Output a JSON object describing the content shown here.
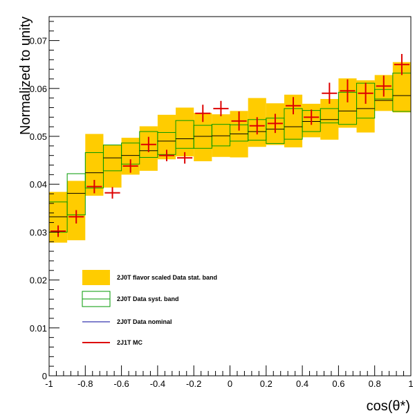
{
  "chart_data": {
    "type": "histogram",
    "xlabel": "cos(θ*)",
    "ylabel": "Normalized to unity",
    "xlim": [
      -1,
      1
    ],
    "ylim": [
      0,
      0.075
    ],
    "x_ticks": [
      "-1",
      "-0.8",
      "-0.6",
      "-0.4",
      "-0.2",
      "0",
      "0.2",
      "0.4",
      "0.6",
      "0.8",
      "1"
    ],
    "y_ticks": [
      "0",
      "0.01",
      "0.02",
      "0.03",
      "0.04",
      "0.05",
      "0.06",
      "0.07"
    ],
    "bin_edges": [
      -1,
      -0.9,
      -0.8,
      -0.7,
      -0.6,
      -0.5,
      -0.4,
      -0.3,
      -0.2,
      -0.1,
      0,
      0.1,
      0.2,
      0.3,
      0.4,
      0.5,
      0.6,
      0.7,
      0.8,
      0.9,
      1
    ],
    "series": [
      {
        "name": "2J0T flavor scaled Data stat. band",
        "color": "#FFCC00",
        "low": [
          0.0278,
          0.0283,
          0.0376,
          0.0393,
          0.042,
          0.0428,
          0.0452,
          0.0458,
          0.0448,
          0.0457,
          0.0456,
          0.0478,
          0.0482,
          0.0477,
          0.0498,
          0.0493,
          0.0518,
          0.0508,
          0.0553,
          0.055
        ],
        "high": [
          0.0384,
          0.0407,
          0.0505,
          0.0482,
          0.0497,
          0.0521,
          0.0545,
          0.056,
          0.0549,
          0.0546,
          0.0553,
          0.058,
          0.0569,
          0.0587,
          0.0568,
          0.0578,
          0.0621,
          0.0617,
          0.0628,
          0.0655
        ]
      },
      {
        "name": "2J0T Data syst. band",
        "color": "#009900",
        "low": [
          0.03,
          0.0336,
          0.0392,
          0.0428,
          0.0442,
          0.0456,
          0.0462,
          0.0475,
          0.0475,
          0.048,
          0.049,
          0.0492,
          0.0485,
          0.0494,
          0.051,
          0.0528,
          0.0525,
          0.0538,
          0.0578,
          0.0552
        ],
        "high": [
          0.0363,
          0.0422,
          0.0466,
          0.0482,
          0.0486,
          0.051,
          0.0508,
          0.0533,
          0.0523,
          0.0525,
          0.0524,
          0.0535,
          0.0538,
          0.0558,
          0.0554,
          0.0558,
          0.0592,
          0.0611,
          0.0598,
          0.0632
        ]
      },
      {
        "name": "2J0T Data nominal",
        "color": "#000099",
        "values": [
          0.0332,
          0.0381,
          0.0424,
          0.0455,
          0.046,
          0.047,
          0.049,
          0.0495,
          0.05,
          0.0501,
          0.0505,
          0.051,
          0.0515,
          0.052,
          0.0531,
          0.0535,
          0.0553,
          0.0558,
          0.0575,
          0.0585
        ]
      },
      {
        "name": "2J1T MC",
        "color": "#DD0000",
        "values": [
          0.0302,
          0.0332,
          0.0395,
          0.0382,
          0.0438,
          0.0483,
          0.046,
          0.0455,
          0.0548,
          0.0558,
          0.0532,
          0.0522,
          0.0527,
          0.0564,
          0.054,
          0.059,
          0.0595,
          0.059,
          0.0605,
          0.065
        ],
        "errors": [
          0.0012,
          0.0014,
          0.0014,
          0.0012,
          0.0014,
          0.0016,
          0.0012,
          0.0012,
          0.0018,
          0.0016,
          0.002,
          0.0018,
          0.002,
          0.0018,
          0.0016,
          0.0022,
          0.0024,
          0.0022,
          0.0022,
          0.0022
        ]
      }
    ],
    "legend_placement": "bottom-left",
    "grid": false
  }
}
